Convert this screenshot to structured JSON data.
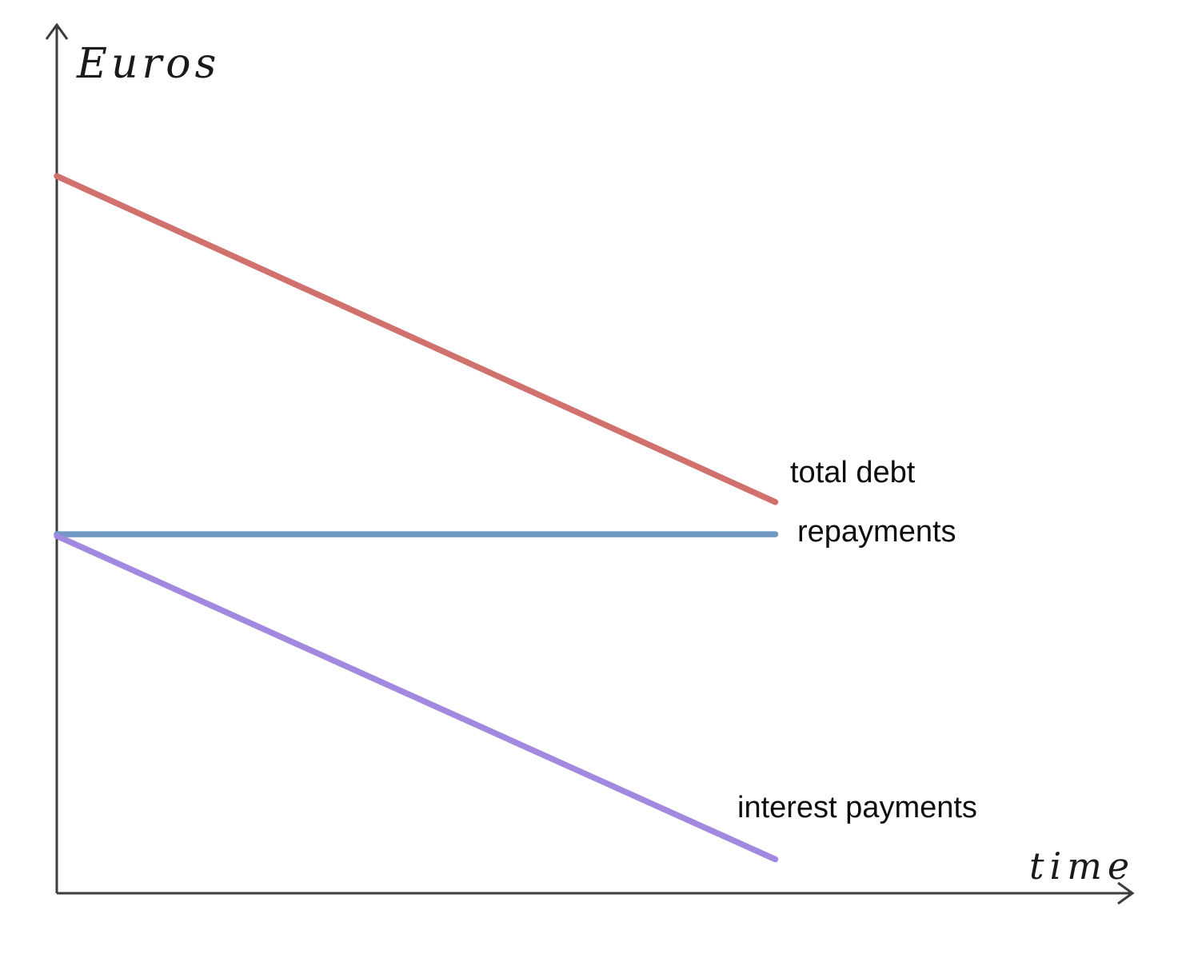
{
  "chart_data": {
    "type": "line",
    "title": "",
    "ylabel": "Euros",
    "xlabel": "time",
    "xlim": [
      0,
      100
    ],
    "ylim": [
      0,
      100
    ],
    "grid": false,
    "legend_position": "inline-right-of-line-end",
    "axis_color": "#3c3c3c",
    "background_color": "#ffffff",
    "series": [
      {
        "name": "total debt",
        "color": "#d1716e",
        "points": [
          [
            0,
            82.5
          ],
          [
            66.7,
            45.0
          ]
        ]
      },
      {
        "name": "repayments",
        "color": "#6f99c2",
        "points": [
          [
            0,
            41.3
          ],
          [
            66.7,
            41.3
          ]
        ]
      },
      {
        "name": "interest payments",
        "color": "#a289e0",
        "points": [
          [
            0,
            41.1
          ],
          [
            66.7,
            3.9
          ]
        ]
      }
    ]
  }
}
